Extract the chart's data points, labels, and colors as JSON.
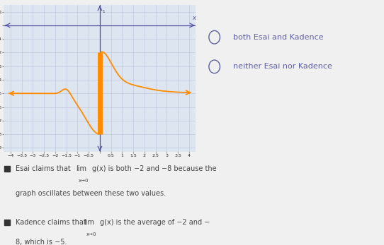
{
  "graph_xlim": [
    -4.3,
    4.3
  ],
  "graph_ylim": [
    -9.3,
    1.5
  ],
  "curve_color": "#FF8C00",
  "axis_color": "#5050a0",
  "grid_color": "#b8c4d8",
  "bg_color": "#dde5f0",
  "fig_bg_color": "#f0f0f0",
  "text_color": "#444444",
  "radio_color": "#6060a0",
  "bullet_color": "#333333",
  "option1": "both Esai and Kadence",
  "option2": "neither Esai nor Kadence"
}
